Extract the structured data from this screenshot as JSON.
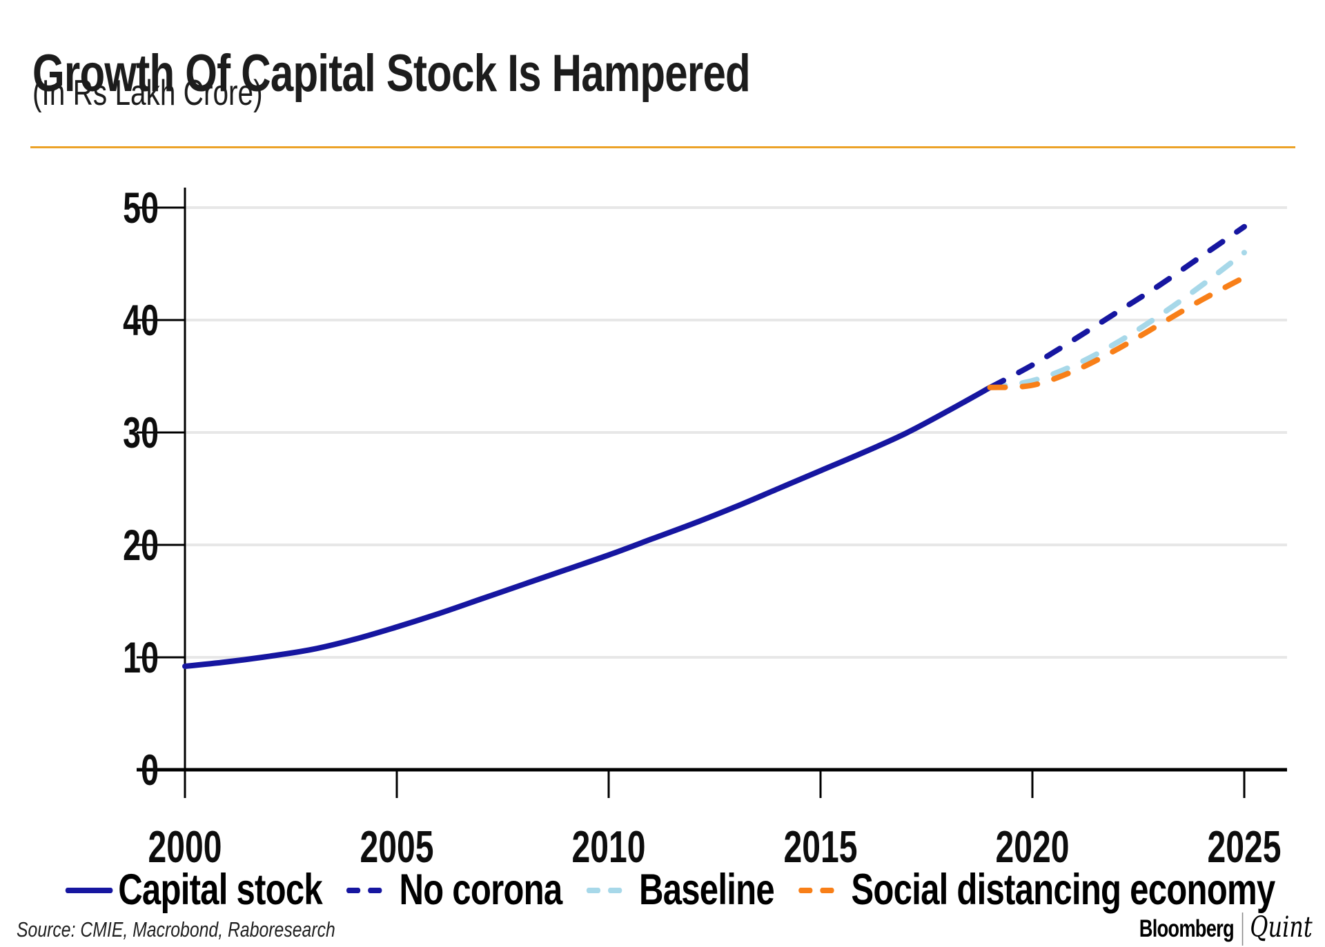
{
  "header": {
    "title": "Growth Of Capital Stock Is Hampered",
    "subtitle": "(In Rs Lakh Crore)"
  },
  "theme": {
    "divider_color": "#eca227",
    "navy": "#1616a0",
    "light_blue": "#a7d8e9",
    "orange": "#f87f18",
    "gridline_color": "#e7e7e7",
    "axis_color": "#000000"
  },
  "chart_data": {
    "type": "line",
    "title": "Growth Of Capital Stock Is Hampered",
    "subtitle": "(In Rs Lakh Crore)",
    "xlabel": "",
    "ylabel": "Rs Lakh Crore",
    "xlim": [
      2000,
      2026
    ],
    "ylim": [
      0,
      50
    ],
    "xticks": [
      2000,
      2005,
      2010,
      2015,
      2020,
      2025
    ],
    "yticks": [
      0,
      10,
      20,
      30,
      40,
      50
    ],
    "grid": "horizontal",
    "legend_position": "bottom",
    "series": [
      {
        "name": "Capital stock",
        "style": "solid",
        "color": "#1616a0",
        "x": [
          2000,
          2001,
          2002,
          2003,
          2004,
          2005,
          2006,
          2007,
          2008,
          2009,
          2010,
          2011,
          2012,
          2013,
          2014,
          2015,
          2016,
          2017,
          2018,
          2019
        ],
        "values": [
          9.2,
          9.6,
          10.1,
          10.7,
          11.6,
          12.7,
          13.9,
          15.2,
          16.5,
          17.8,
          19.1,
          20.5,
          21.9,
          23.4,
          25.0,
          26.6,
          28.2,
          29.9,
          31.9,
          34.0
        ]
      },
      {
        "name": "Baseline",
        "style": "dashed",
        "color": "#a7d8e9",
        "x": [
          2019,
          2020,
          2021,
          2022,
          2023,
          2024,
          2025
        ],
        "values": [
          34.0,
          34.6,
          36.0,
          38.0,
          40.4,
          43.1,
          46.0
        ]
      },
      {
        "name": "No corona",
        "style": "dashed",
        "color": "#1616a0",
        "x": [
          2019,
          2020,
          2021,
          2022,
          2023,
          2024,
          2025
        ],
        "values": [
          34.0,
          36.0,
          38.3,
          40.7,
          43.1,
          45.7,
          48.3
        ]
      },
      {
        "name": "Social distancing economy",
        "style": "dashed",
        "color": "#f87f18",
        "x": [
          2019,
          2020,
          2021,
          2022,
          2023,
          2024,
          2025
        ],
        "values": [
          34.0,
          34.2,
          35.5,
          37.4,
          39.6,
          41.8,
          43.8
        ]
      }
    ]
  },
  "legend": {
    "items": [
      {
        "label": "Capital stock",
        "style": "solid",
        "color": "#1616a0"
      },
      {
        "label": "No corona",
        "style": "dashed",
        "color": "#1616a0"
      },
      {
        "label": "Baseline",
        "style": "dashed",
        "color": "#a7d8e9"
      },
      {
        "label": "Social distancing economy",
        "style": "dashed",
        "color": "#f87f18"
      }
    ]
  },
  "footer": {
    "source": "Source: CMIE, Macrobond, Raboresearch",
    "brand": {
      "bloomberg": "Bloomberg",
      "quint": "Quint"
    }
  }
}
